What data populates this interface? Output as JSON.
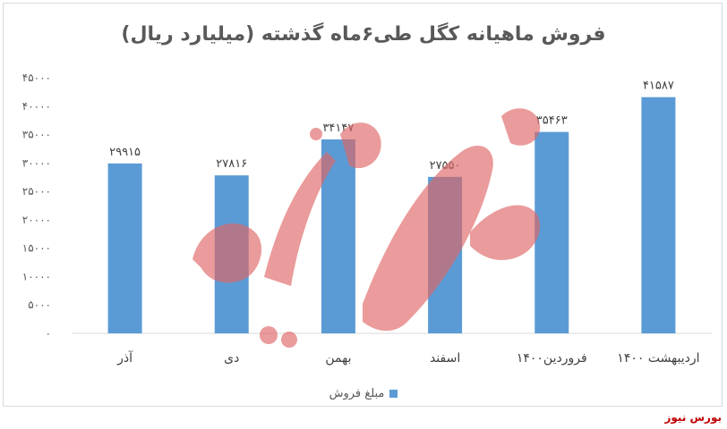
{
  "chart_data": {
    "type": "bar",
    "title": "فروش ماهیانه کگل طی۶ماه گذشته (میلیارد ریال)",
    "categories": [
      "آذر",
      "دی",
      "بهمن",
      "اسفند",
      "فروردین۱۴۰۰",
      "اردیبهشت ۱۴۰۰"
    ],
    "series": [
      {
        "name": "مبلغ فروش",
        "values": [
          29915,
          27816,
          34147,
          27550,
          35463,
          41587
        ],
        "labels": [
          "۲۹۹۱۵",
          "۲۷۸۱۶",
          "۳۴۱۴۷",
          "۲۷۵۵۰",
          "۳۵۴۶۳",
          "۴۱۵۸۷"
        ],
        "color": "#5b9bd5"
      }
    ],
    "ylim": [
      0,
      45000
    ],
    "yticks": [
      0,
      5000,
      10000,
      15000,
      20000,
      25000,
      30000,
      35000,
      40000,
      45000
    ],
    "ytick_labels": [
      "۰",
      "۵۰۰۰",
      "۱۰۰۰۰",
      "۱۵۰۰۰",
      "۲۰۰۰۰",
      "۲۵۰۰۰",
      "۳۰۰۰۰",
      "۳۵۰۰۰",
      "۴۰۰۰۰",
      "۴۵۰۰۰"
    ],
    "grid": false,
    "legend": "bottom"
  },
  "watermark": {
    "logo_text": "بورس نیوز",
    "corner_text": "بورس نیوز",
    "color": "#e06666"
  }
}
